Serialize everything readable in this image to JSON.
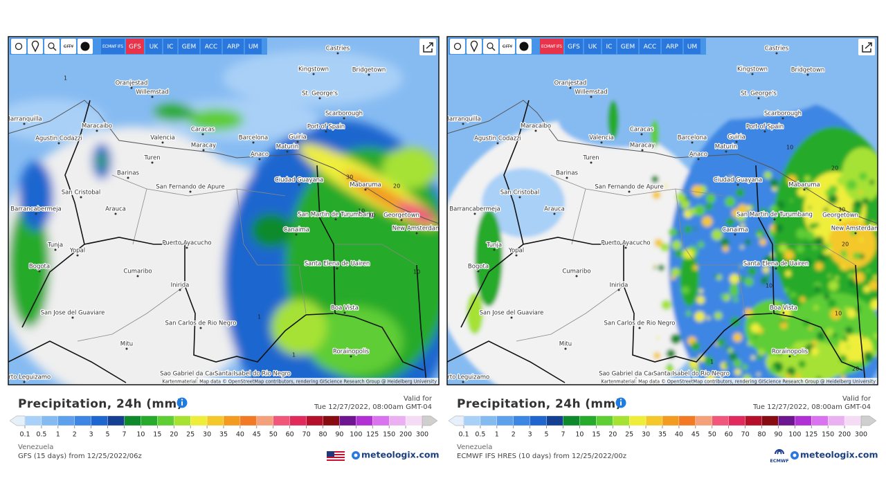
{
  "panels": [
    {
      "toolbar": {
        "city": "CITY",
        "models": [
          "ECMWF IFS",
          "GFS",
          "UK",
          "IC",
          "GEM",
          "ACC",
          "ARP",
          "UM"
        ],
        "active": "GFS"
      },
      "contour_labels": [
        1,
        30,
        20,
        10,
        10,
        1,
        1,
        10
      ],
      "title": "Precipitation, 24h (mm)",
      "valid_label": "Valid for",
      "valid_time": "Tue 12/27/2022, 08:00am GMT-04",
      "region": "Venezuela",
      "run": "GFS (15 days) from 12/25/2022/06z",
      "brand": "meteologix.com"
    },
    {
      "toolbar": {
        "city": "CITY",
        "models": [
          "ECMWF IFS",
          "GFS",
          "UK",
          "IC",
          "GEM",
          "ACC",
          "ARP",
          "UM"
        ],
        "active": "ECMWF IFS"
      },
      "contour_labels": [
        10,
        20,
        30,
        20,
        10,
        10,
        20,
        1
      ],
      "title": "Precipitation, 24h (mm)",
      "valid_label": "Valid for",
      "valid_time": "Tue 12/27/2022, 08:00am GMT-04",
      "region": "Venezuela",
      "run": "ECMWF IFS HRES (10 days) from 12/25/2022/00z",
      "brand": "meteologix.com",
      "provider": "ECMWF"
    }
  ],
  "map": {
    "cities": [
      "Castries",
      "Kingstown",
      "Bridgetown",
      "Oranjestad",
      "Willemstad",
      "St. George's",
      "Scarborough",
      "Barranquilla",
      "Maracaibo",
      "Caracas",
      "Port of Spain",
      "Valencia",
      "Barcelona",
      "Guiria",
      "Maracay",
      "Maturin",
      "Anaco",
      "Agustin Codazzi",
      "Barinas",
      "Turen",
      "San Fernando de Apure",
      "Ciudad Guayana",
      "Mabaruma",
      "San Cristobal",
      "Barrancabermeja",
      "Arauca",
      "San Martin de Turumbang",
      "Georgetown",
      "New Amsterdam",
      "Canaima",
      "Puerto Ayacucho",
      "Tunja",
      "Yopal",
      "Bogota",
      "Santa Elena de Uairen",
      "Cumaribo",
      "Inirida",
      "Boa Vista",
      "San Jose del Guaviare",
      "San Carlos de Rio Negro",
      "Mitu",
      "Rorainopolis",
      "Sao Gabriel da Cachoeira",
      "Santa Isabel do Rio Negro",
      "Puerto Leguizamo"
    ],
    "attribution": "Kartenmaterial: Map data © OpenStreetMap contributors, rendering GIScience Research Group @ Heidelberg University"
  },
  "legend": {
    "labels": [
      0.1,
      0.5,
      1,
      2,
      3,
      5,
      7,
      10,
      15,
      20,
      25,
      30,
      35,
      40,
      45,
      50,
      60,
      70,
      80,
      90,
      100,
      125,
      150,
      200,
      300
    ],
    "colors": [
      "#a9d0f7",
      "#86bbf2",
      "#5fa0ec",
      "#3d86e3",
      "#1f66cf",
      "#143f92",
      "#0e8a2c",
      "#27aa2c",
      "#5fcd34",
      "#a6e234",
      "#eeee3a",
      "#f4c82a",
      "#f39a20",
      "#f27a24",
      "#f4a07a",
      "#f0577a",
      "#e02a5c",
      "#b4102c",
      "#870c12",
      "#6e1690",
      "#b030d4",
      "#d872ee",
      "#eab0f2",
      "#f5dcf5"
    ]
  }
}
